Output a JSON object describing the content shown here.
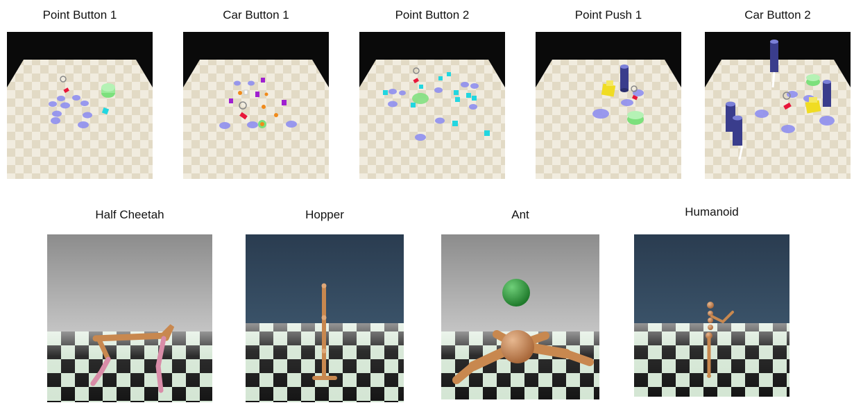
{
  "figure": {
    "top_row": [
      {
        "label": "Point Button 1"
      },
      {
        "label": "Car Button 1"
      },
      {
        "label": "Point Button 2"
      },
      {
        "label": "Point Push 1"
      },
      {
        "label": "Car Button 2"
      }
    ],
    "bottom_row": [
      {
        "label": "Half Cheetah"
      },
      {
        "label": "Hopper"
      },
      {
        "label": "Ant"
      },
      {
        "label": "Humanoid"
      }
    ]
  },
  "colors": {
    "floor_light": "#f1ecdf",
    "floor_dark": "#e2dac5",
    "space": "#0a0a0a",
    "hazard": "#8f8ff0",
    "goal": "#7ce07c",
    "vase": "#22d6e0",
    "pillar": "#3a3d8c",
    "box": "#f0dc22",
    "robot": "#e8163a",
    "body_brown": "#c8884f",
    "cheetah_leg": "#d98ca8",
    "ant_target": "#2f9a3c",
    "checker_light": "#d4e6d4",
    "checker_dark": "#151515",
    "sky_gray": "#9a9a9a",
    "sky_blue": "#2e4257"
  }
}
